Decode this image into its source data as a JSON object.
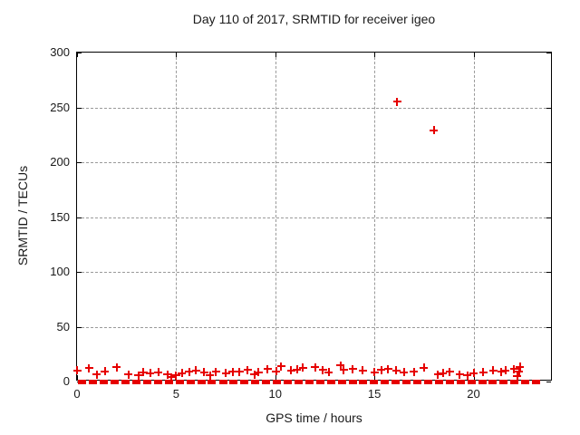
{
  "chart_data": {
    "type": "scatter",
    "title": "Day 110 of 2017, SRMTID for receiver igeo",
    "xlabel": "GPS time / hours",
    "ylabel": "SRMTID / TECUs",
    "xlim": [
      0,
      24
    ],
    "ylim": [
      0,
      300
    ],
    "xticks": [
      0,
      5,
      10,
      15,
      20
    ],
    "yticks": [
      0,
      50,
      100,
      150,
      200,
      250,
      300
    ],
    "grid": true,
    "grid_color": "#9a9a9a",
    "marker": "plus",
    "marker_color": "#e60000",
    "legend": "none",
    "series": [
      {
        "name": "near-zero-band",
        "marker": "dash",
        "points": [
          [
            0.27,
            0
          ],
          [
            0.82,
            0
          ],
          [
            1.36,
            0
          ],
          [
            1.91,
            0
          ],
          [
            2.45,
            0
          ],
          [
            3.0,
            0
          ],
          [
            3.54,
            0
          ],
          [
            4.09,
            0
          ],
          [
            4.63,
            0
          ],
          [
            5.18,
            0
          ],
          [
            5.72,
            0
          ],
          [
            6.27,
            0
          ],
          [
            6.81,
            0
          ],
          [
            7.36,
            0
          ],
          [
            7.9,
            0
          ],
          [
            8.45,
            0
          ],
          [
            8.99,
            0
          ],
          [
            9.54,
            0
          ],
          [
            10.08,
            0
          ],
          [
            10.63,
            0
          ],
          [
            11.17,
            0
          ],
          [
            11.72,
            0
          ],
          [
            12.26,
            0
          ],
          [
            12.81,
            0
          ],
          [
            13.35,
            0
          ],
          [
            13.9,
            0
          ],
          [
            14.44,
            0
          ],
          [
            14.99,
            0
          ],
          [
            15.53,
            0
          ],
          [
            16.08,
            0
          ],
          [
            16.62,
            0
          ],
          [
            17.17,
            0
          ],
          [
            17.71,
            0
          ],
          [
            18.26,
            0
          ],
          [
            18.8,
            0
          ],
          [
            19.35,
            0
          ],
          [
            19.89,
            0
          ],
          [
            20.44,
            0
          ],
          [
            20.98,
            0
          ],
          [
            21.53,
            0
          ],
          [
            22.07,
            0
          ],
          [
            22.62,
            0
          ],
          [
            23.16,
            0
          ]
        ]
      },
      {
        "name": "low-scatter",
        "marker": "plus",
        "points": [
          [
            0.0,
            10
          ],
          [
            0.6,
            12
          ],
          [
            1.0,
            6.5
          ],
          [
            1.4,
            9.5
          ],
          [
            2.0,
            13
          ],
          [
            2.6,
            6.5
          ],
          [
            3.1,
            5.5
          ],
          [
            3.35,
            8.5
          ],
          [
            3.7,
            7.5
          ],
          [
            4.1,
            8.5
          ],
          [
            4.55,
            6.5
          ],
          [
            4.75,
            4
          ],
          [
            5.0,
            5.5
          ],
          [
            5.3,
            7.5
          ],
          [
            5.65,
            9
          ],
          [
            6.0,
            10
          ],
          [
            6.4,
            8.5
          ],
          [
            6.7,
            5.5
          ],
          [
            7.0,
            9
          ],
          [
            7.5,
            7.5
          ],
          [
            7.85,
            9
          ],
          [
            8.2,
            9
          ],
          [
            8.6,
            10.5
          ],
          [
            8.95,
            6.5
          ],
          [
            9.15,
            8.5
          ],
          [
            9.6,
            11.5
          ],
          [
            10.05,
            9.5
          ],
          [
            10.3,
            14
          ],
          [
            10.8,
            10
          ],
          [
            11.1,
            11
          ],
          [
            11.4,
            12.5
          ],
          [
            12.0,
            13
          ],
          [
            12.4,
            10.5
          ],
          [
            12.7,
            8.5
          ],
          [
            13.3,
            14.5
          ],
          [
            13.45,
            10.5
          ],
          [
            13.9,
            11.5
          ],
          [
            14.4,
            10
          ],
          [
            15.0,
            8.5
          ],
          [
            15.35,
            10.5
          ],
          [
            15.7,
            11.5
          ],
          [
            16.1,
            10
          ],
          [
            16.5,
            8.5
          ],
          [
            17.0,
            9
          ],
          [
            17.5,
            12.5
          ],
          [
            18.2,
            6.5
          ],
          [
            18.45,
            7.5
          ],
          [
            18.8,
            9
          ],
          [
            19.3,
            6.5
          ],
          [
            19.7,
            5.5
          ],
          [
            20.0,
            7.5
          ],
          [
            20.5,
            8.5
          ],
          [
            21.0,
            10
          ],
          [
            21.4,
            9
          ],
          [
            21.6,
            10
          ],
          [
            22.05,
            11.5
          ],
          [
            22.2,
            5
          ],
          [
            22.3,
            9
          ],
          [
            22.35,
            13.5
          ]
        ]
      },
      {
        "name": "outliers",
        "marker": "plus",
        "points": [
          [
            16.15,
            255
          ],
          [
            18.0,
            229
          ]
        ]
      }
    ]
  }
}
